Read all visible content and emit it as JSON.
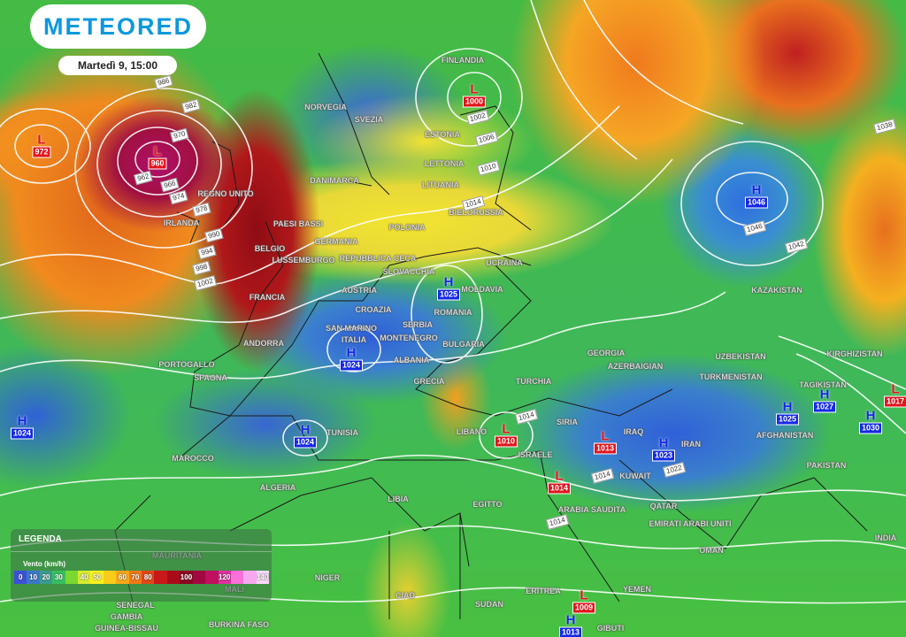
{
  "header": {
    "brand": "METEORED",
    "datetime": "Martedì 9, 15:00"
  },
  "legend": {
    "title": "LEGENDA",
    "unit": "Vento (km/h)",
    "steps": [
      {
        "label": "0",
        "color": "#3a50d8"
      },
      {
        "label": "10",
        "color": "#3a78c8"
      },
      {
        "label": "20",
        "color": "#3a9c8c"
      },
      {
        "label": "30",
        "color": "#36c060"
      },
      {
        "label": "",
        "color": "#7ad830"
      },
      {
        "label": "40",
        "color": "#d8ec30"
      },
      {
        "label": "50",
        "color": "#f8f020"
      },
      {
        "label": "",
        "color": "#f8cc18"
      },
      {
        "label": "60",
        "color": "#f8a818"
      },
      {
        "label": "70",
        "color": "#f07818"
      },
      {
        "label": "80",
        "color": "#e04818"
      },
      {
        "label": "",
        "color": "#c81818"
      },
      {
        "label": "",
        "color": "#a80c18"
      },
      {
        "label": "100",
        "color": "#8c0420"
      },
      {
        "label": "",
        "color": "#a00840"
      },
      {
        "label": "",
        "color": "#c01060"
      },
      {
        "label": "120",
        "color": "#e030a0"
      },
      {
        "label": "",
        "color": "#f870d8"
      },
      {
        "label": "",
        "color": "#f8a8f0"
      },
      {
        "label": "140",
        "color": "#f8d8f8"
      }
    ]
  },
  "countries": [
    "FINLANDIA",
    "NORVEGIA",
    "SVEZIA",
    "ESTONIA",
    "LETTONIA",
    "LITUANIA",
    "DANIMARCA",
    "REGNO UNITO",
    "IRLANDA",
    "BIELORUSSIA",
    "PAESI BASSI",
    "POLONIA",
    "GERMANIA",
    "BELGIO",
    "LUSSEMBURGO",
    "REPUBBLICA CECA",
    "UCRAINA",
    "SLOVACCHIA",
    "AUSTRIA",
    "MOLDAVIA",
    "FRANCIA",
    "ROMANIA",
    "CROAZIA",
    "SERBIA",
    "SAN MARINO",
    "ITALIA",
    "MONTENEGRO",
    "BULGARIA",
    "ANDORRA",
    "ALBANIA",
    "PORTOGALLO",
    "SPAGNA",
    "GRECIA",
    "TURCHIA",
    "GEORGIA",
    "AZERBAIGIAN",
    "UZBEKISTAN",
    "KIRGHIZISTAN",
    "TURKMENISTAN",
    "TAGIKISTAN",
    "KAZAKISTAN",
    "SIRIA",
    "LIBANO",
    "ISRAELE",
    "IRAQ",
    "IRAN",
    "AFGHANISTAN",
    "PAKISTAN",
    "KUWAIT",
    "TUNISIA",
    "MAROCCO",
    "ALGERIA",
    "LIBIA",
    "EGITTO",
    "ARABIA SAUDITA",
    "QATAR",
    "EMIRATI ARABI UNITI",
    "OMAN",
    "INDIA",
    "MAURITANIA",
    "MALI",
    "NIGER",
    "CIAD",
    "SUDAN",
    "ERITREA",
    "YEMEN",
    "SENEGAL",
    "GAMBIA",
    "GUINEA-BISSAU",
    "BURKINA FASO",
    "GIBUTI"
  ],
  "pressure_centers": [
    {
      "type": "L",
      "value": "972"
    },
    {
      "type": "L",
      "value": "960"
    },
    {
      "type": "L",
      "value": "1000"
    },
    {
      "type": "H",
      "value": "1046"
    },
    {
      "type": "H",
      "value": "1025"
    },
    {
      "type": "H",
      "value": "1024"
    },
    {
      "type": "H",
      "value": "1024"
    },
    {
      "type": "H",
      "value": "1024"
    },
    {
      "type": "L",
      "value": "1010"
    },
    {
      "type": "L",
      "value": "1013"
    },
    {
      "type": "L",
      "value": "1014"
    },
    {
      "type": "H",
      "value": "1023"
    },
    {
      "type": "H",
      "value": "1025"
    },
    {
      "type": "H",
      "value": "1027"
    },
    {
      "type": "H",
      "value": "1030"
    },
    {
      "type": "L",
      "value": "1017"
    },
    {
      "type": "L",
      "value": "1009"
    },
    {
      "type": "H",
      "value": "1013"
    }
  ],
  "isobar_labels": [
    "986",
    "982",
    "970",
    "962",
    "966",
    "974",
    "978",
    "990",
    "994",
    "998",
    "1002",
    "1002",
    "1006",
    "1010",
    "1014",
    "1038",
    "1046",
    "1042",
    "1014",
    "1014",
    "1014",
    "1022"
  ],
  "colors": {
    "low": "#e2141c",
    "high": "#1428e6",
    "brand": "#0b98dd"
  }
}
